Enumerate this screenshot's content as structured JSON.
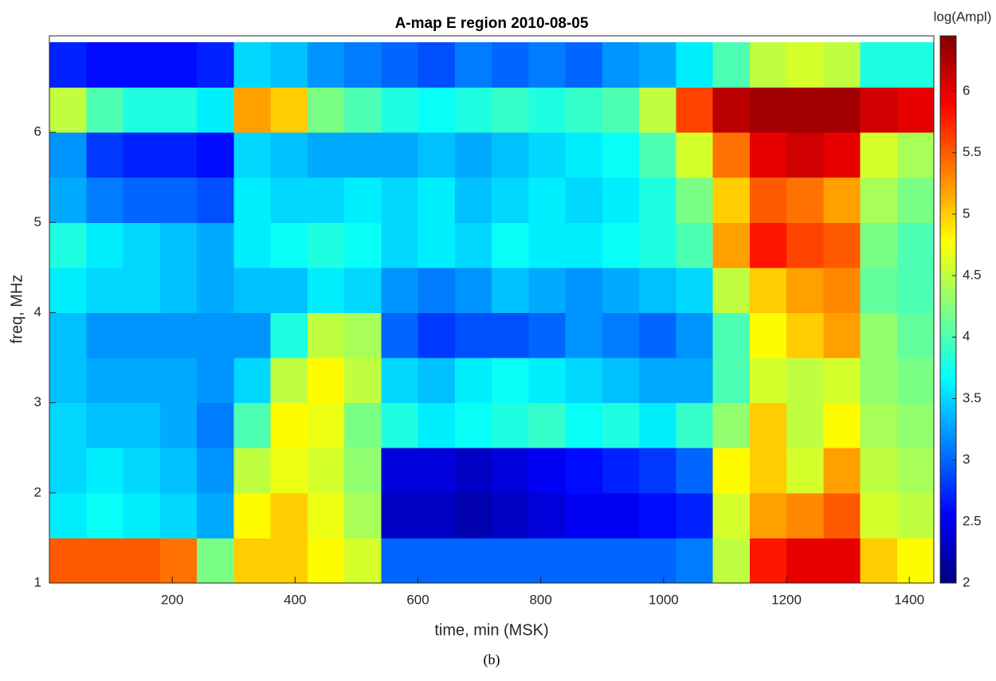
{
  "chart_data": {
    "type": "heatmap",
    "title": "A-map E region 2010-08-05",
    "x_label": "time, min (MSK)",
    "y_label": "freq, MHz",
    "colorbar_label": "log(Ampl)",
    "caption": "(b)",
    "colormap": "jet",
    "x": [
      30,
      90,
      150,
      210,
      270,
      330,
      390,
      450,
      510,
      570,
      630,
      690,
      750,
      810,
      870,
      930,
      990,
      1050,
      1110,
      1170,
      1230,
      1290,
      1350,
      1410
    ],
    "y": [
      1.25,
      1.75,
      2.25,
      2.75,
      3.25,
      3.75,
      4.25,
      4.75,
      5.25,
      5.75,
      6.25,
      6.75
    ],
    "z": [
      [
        5.5,
        5.5,
        5.5,
        5.4,
        4.2,
        5.0,
        5.0,
        4.8,
        4.6,
        3.0,
        3.0,
        3.0,
        3.0,
        3.0,
        3.0,
        3.0,
        3.0,
        3.1,
        4.5,
        5.8,
        6.0,
        6.0,
        5.0,
        4.8
      ],
      [
        3.6,
        3.7,
        3.6,
        3.5,
        3.3,
        4.8,
        5.0,
        4.7,
        4.4,
        2.3,
        2.3,
        2.2,
        2.3,
        2.4,
        2.5,
        2.5,
        2.6,
        2.7,
        4.6,
        5.2,
        5.3,
        5.5,
        4.6,
        4.5
      ],
      [
        3.5,
        3.6,
        3.5,
        3.4,
        3.2,
        4.5,
        4.7,
        4.6,
        4.3,
        2.4,
        2.4,
        2.3,
        2.4,
        2.5,
        2.6,
        2.7,
        2.8,
        3.0,
        4.8,
        5.0,
        4.6,
        5.2,
        4.5,
        4.4
      ],
      [
        3.5,
        3.4,
        3.4,
        3.3,
        3.1,
        4.0,
        4.8,
        4.7,
        4.2,
        3.8,
        3.6,
        3.7,
        3.8,
        3.9,
        3.7,
        3.8,
        3.6,
        3.9,
        4.3,
        5.0,
        4.5,
        4.8,
        4.4,
        4.3
      ],
      [
        3.4,
        3.3,
        3.3,
        3.3,
        3.2,
        3.5,
        4.5,
        4.8,
        4.5,
        3.5,
        3.4,
        3.6,
        3.7,
        3.6,
        3.5,
        3.4,
        3.3,
        3.3,
        4.0,
        4.6,
        4.5,
        4.6,
        4.3,
        4.2
      ],
      [
        3.4,
        3.2,
        3.2,
        3.2,
        3.2,
        3.2,
        3.8,
        4.5,
        4.4,
        3.0,
        2.8,
        2.9,
        2.9,
        3.0,
        3.2,
        3.1,
        3.0,
        3.2,
        4.0,
        4.8,
        5.0,
        5.2,
        4.3,
        4.1
      ],
      [
        3.6,
        3.5,
        3.5,
        3.4,
        3.3,
        3.4,
        3.4,
        3.6,
        3.5,
        3.2,
        3.1,
        3.2,
        3.4,
        3.3,
        3.2,
        3.3,
        3.4,
        3.5,
        4.5,
        5.0,
        5.2,
        5.3,
        4.1,
        4.0
      ],
      [
        3.8,
        3.6,
        3.5,
        3.4,
        3.3,
        3.6,
        3.7,
        3.8,
        3.7,
        3.5,
        3.6,
        3.5,
        3.7,
        3.6,
        3.6,
        3.7,
        3.8,
        4.0,
        5.2,
        5.8,
        5.6,
        5.5,
        4.2,
        4.0
      ],
      [
        3.3,
        3.1,
        3.0,
        3.0,
        2.9,
        3.6,
        3.5,
        3.5,
        3.6,
        3.5,
        3.6,
        3.4,
        3.5,
        3.6,
        3.5,
        3.6,
        3.8,
        4.2,
        5.0,
        5.5,
        5.4,
        5.2,
        4.4,
        4.2
      ],
      [
        3.2,
        2.8,
        2.7,
        2.7,
        2.6,
        3.5,
        3.4,
        3.3,
        3.3,
        3.3,
        3.4,
        3.3,
        3.4,
        3.5,
        3.6,
        3.7,
        4.0,
        4.6,
        5.4,
        6.0,
        6.1,
        6.0,
        4.6,
        4.4
      ],
      [
        4.5,
        4.0,
        3.8,
        3.8,
        3.6,
        5.2,
        5.0,
        4.2,
        4.0,
        3.8,
        3.7,
        3.8,
        3.9,
        3.8,
        3.9,
        4.0,
        4.5,
        5.6,
        6.2,
        6.3,
        6.3,
        6.3,
        6.1,
        6.0
      ],
      [
        2.7,
        2.6,
        2.6,
        2.6,
        2.7,
        3.5,
        3.4,
        3.2,
        3.1,
        3.0,
        2.9,
        3.1,
        3.0,
        3.1,
        3.0,
        3.2,
        3.3,
        3.6,
        4.0,
        4.5,
        4.6,
        4.5,
        3.8,
        3.8
      ]
    ],
    "xlim": [
      0,
      1440
    ],
    "ylim": [
      1,
      7.07
    ],
    "clim": [
      2,
      6.45
    ],
    "xticks": [
      200,
      400,
      600,
      800,
      1000,
      1200,
      1400
    ],
    "yticks": [
      1,
      2,
      3,
      4,
      5,
      6
    ],
    "colorbar_ticks": [
      2,
      2.5,
      3,
      3.5,
      4,
      4.5,
      5,
      5.5,
      6
    ]
  }
}
